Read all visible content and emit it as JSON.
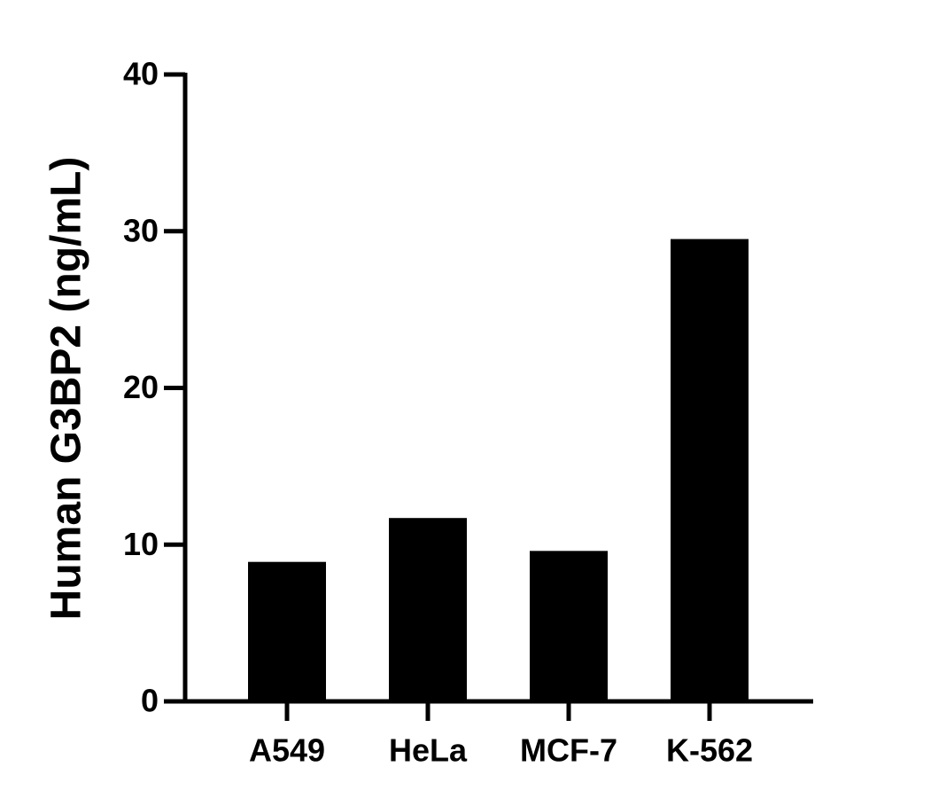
{
  "chart_data": {
    "type": "bar",
    "y_label": "Human G3BP2 (ng/mL)",
    "categories": [
      "A549",
      "HeLa",
      "MCF-7",
      "K-562"
    ],
    "values": [
      8.9,
      11.7,
      9.6,
      29.5
    ],
    "color": "#000000",
    "ylim": [
      0,
      40
    ],
    "yticks": [
      0,
      10,
      20,
      30,
      40
    ]
  }
}
